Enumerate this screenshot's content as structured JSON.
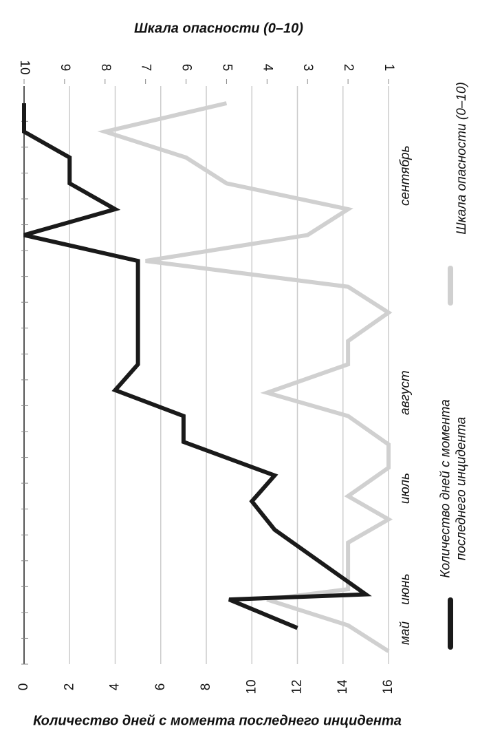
{
  "chart_data": {
    "type": "line",
    "title": "Шкала опасности (0–10)",
    "ylabel": "Количество дней с момента последнего инцидента",
    "ylim": [
      0,
      16
    ],
    "yticks": [
      0,
      2,
      4,
      6,
      8,
      10,
      12,
      14,
      16
    ],
    "y2lim": [
      10,
      1
    ],
    "y2ticks": [
      10,
      9,
      8,
      7,
      6,
      5,
      4,
      3,
      2,
      1
    ],
    "xlim": [
      0,
      21.7
    ],
    "x_labels": [
      {
        "value": 1.2,
        "label": "май"
      },
      {
        "value": 2.9,
        "label": "июнь"
      },
      {
        "value": 6.8,
        "label": "июль"
      },
      {
        "value": 10.5,
        "label": "август"
      },
      {
        "value": 18.9,
        "label": "сентябрь"
      }
    ],
    "grid": true,
    "series": [
      {
        "name": "Количество дней с момента последнего инцидента",
        "color": "#1a1a1a",
        "x": [
          1.4,
          2.5,
          2.7,
          5.2,
          6.3,
          7.3,
          8.6,
          9.6,
          10.6,
          11.6,
          15.6,
          16.6,
          17.6,
          18.6,
          19.6,
          20.6,
          21.7
        ],
        "values": [
          12,
          9,
          15,
          11,
          10,
          11,
          7,
          7,
          4,
          5,
          5,
          0,
          4,
          2,
          2,
          0,
          0
        ]
      },
      {
        "name": "Шкала опасности (0–10)",
        "color": "#d0d0d0",
        "axis": "y2",
        "x": [
          0.5,
          1.5,
          2.5,
          2.9,
          4.7,
          5.6,
          6.5,
          7.6,
          8.5,
          9.6,
          10.5,
          11.6,
          12.5,
          13.6,
          14.6,
          15.6,
          16.6,
          17.6,
          18.6,
          19.6,
          20.6,
          21.7
        ],
        "values": [
          1,
          2,
          4,
          2,
          2,
          1,
          2,
          1,
          1,
          2,
          4,
          2,
          2,
          1,
          2,
          7,
          3,
          2,
          5,
          6,
          8,
          5
        ]
      }
    ]
  }
}
